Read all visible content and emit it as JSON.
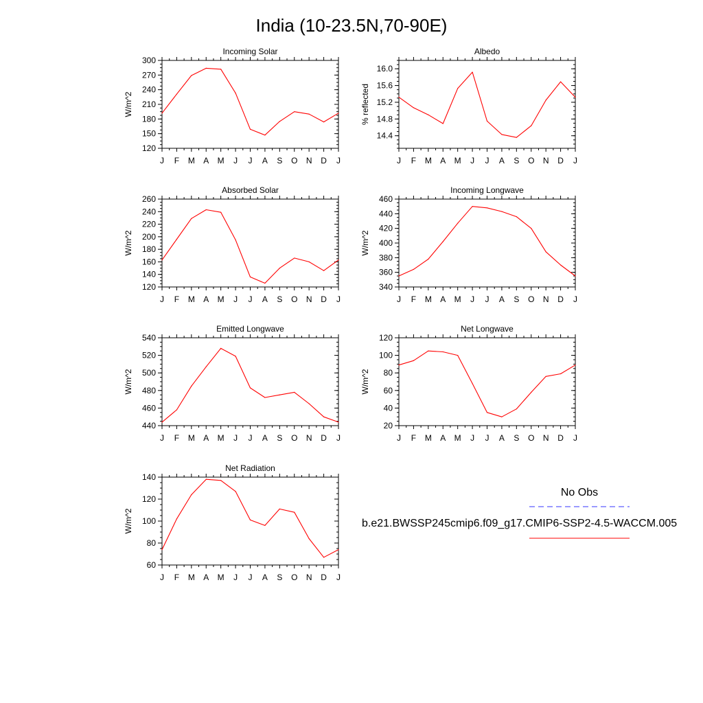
{
  "figure": {
    "title": "India (10-23.5N,70-90E)",
    "series_color": "#ff0000",
    "obs_color": "#3333ff"
  },
  "legend": {
    "obs_label": "No Obs",
    "model_label": "b.e21.BWSSP245cmip6.f09_g17.CMIP6-SSP2-4.5-WACCM.005"
  },
  "chart_data": [
    {
      "type": "line",
      "title": "Incoming Solar",
      "ylabel": "W/m^2",
      "x": [
        "J",
        "F",
        "M",
        "A",
        "M",
        "J",
        "J",
        "A",
        "S",
        "O",
        "N",
        "D",
        "J"
      ],
      "ylim": [
        120,
        300
      ],
      "yticks": [
        120,
        150,
        180,
        210,
        240,
        270,
        300
      ],
      "yticklabels": [
        "120",
        "150",
        "180",
        "210",
        "240",
        "270",
        "300"
      ],
      "series": [
        {
          "values": [
            192,
            231,
            269,
            284,
            282,
            233,
            159,
            147,
            175,
            195,
            190,
            174,
            192
          ]
        }
      ]
    },
    {
      "type": "line",
      "title": "Albedo",
      "ylabel": "% reflected",
      "x": [
        "J",
        "F",
        "M",
        "A",
        "M",
        "J",
        "J",
        "A",
        "S",
        "O",
        "N",
        "D",
        "J"
      ],
      "ylim": [
        14.1,
        16.2
      ],
      "yticks": [
        14.4,
        14.8,
        15.2,
        15.6,
        16.0
      ],
      "yticklabels": [
        "14.4",
        "14.8",
        "15.2",
        "15.6",
        "16.0"
      ],
      "series": [
        {
          "values": [
            15.32,
            15.07,
            14.9,
            14.69,
            15.53,
            15.92,
            14.75,
            14.43,
            14.36,
            14.64,
            15.25,
            15.69,
            15.32
          ]
        }
      ]
    },
    {
      "type": "line",
      "title": "Absorbed Solar",
      "ylabel": "W/m^2",
      "x": [
        "J",
        "F",
        "M",
        "A",
        "M",
        "J",
        "J",
        "A",
        "S",
        "O",
        "N",
        "D",
        "J"
      ],
      "ylim": [
        120,
        260
      ],
      "yticks": [
        120,
        140,
        160,
        180,
        200,
        220,
        240,
        260
      ],
      "yticklabels": [
        "120",
        "140",
        "160",
        "180",
        "200",
        "220",
        "240",
        "260"
      ],
      "series": [
        {
          "values": [
            163,
            196,
            229,
            243,
            239,
            195,
            136,
            126,
            150,
            166,
            160,
            146,
            163
          ]
        }
      ]
    },
    {
      "type": "line",
      "title": "Incoming Longwave",
      "ylabel": "W/m^2",
      "x": [
        "J",
        "F",
        "M",
        "A",
        "M",
        "J",
        "J",
        "A",
        "S",
        "O",
        "N",
        "D",
        "J"
      ],
      "ylim": [
        340,
        460
      ],
      "yticks": [
        340,
        360,
        380,
        400,
        420,
        440,
        460
      ],
      "yticklabels": [
        "340",
        "360",
        "380",
        "400",
        "420",
        "440",
        "460"
      ],
      "series": [
        {
          "values": [
            355,
            364,
            378,
            402,
            427,
            450,
            448,
            443,
            436,
            420,
            388,
            370,
            355
          ]
        }
      ]
    },
    {
      "type": "line",
      "title": "Emitted Longwave",
      "ylabel": "W/m^2",
      "x": [
        "J",
        "F",
        "M",
        "A",
        "M",
        "J",
        "J",
        "A",
        "S",
        "O",
        "N",
        "D",
        "J"
      ],
      "ylim": [
        440,
        540
      ],
      "yticks": [
        440,
        460,
        480,
        500,
        520,
        540
      ],
      "yticklabels": [
        "440",
        "460",
        "480",
        "500",
        "520",
        "540"
      ],
      "series": [
        {
          "values": [
            444,
            458,
            485,
            507,
            528,
            519,
            483,
            472,
            475,
            478,
            465,
            450,
            444
          ]
        }
      ]
    },
    {
      "type": "line",
      "title": "Net Longwave",
      "ylabel": "W/m^2",
      "x": [
        "J",
        "F",
        "M",
        "A",
        "M",
        "J",
        "J",
        "A",
        "S",
        "O",
        "N",
        "D",
        "J"
      ],
      "ylim": [
        20,
        120
      ],
      "yticks": [
        20,
        40,
        60,
        80,
        100,
        120
      ],
      "yticklabels": [
        "20",
        "40",
        "60",
        "80",
        "100",
        "120"
      ],
      "series": [
        {
          "values": [
            89,
            94,
            105,
            104,
            100,
            68,
            35,
            30,
            39,
            58,
            76,
            79,
            89
          ]
        }
      ]
    },
    {
      "type": "line",
      "title": "Net Radiation",
      "ylabel": "W/m^2",
      "x": [
        "J",
        "F",
        "M",
        "A",
        "M",
        "J",
        "J",
        "A",
        "S",
        "O",
        "N",
        "D",
        "J"
      ],
      "ylim": [
        60,
        140
      ],
      "yticks": [
        60,
        80,
        100,
        120,
        140
      ],
      "yticklabels": [
        "60",
        "80",
        "100",
        "120",
        "140"
      ],
      "series": [
        {
          "values": [
            74,
            102,
            124,
            138,
            137,
            127,
            101,
            96,
            111,
            108,
            84,
            67,
            74
          ]
        }
      ]
    }
  ]
}
